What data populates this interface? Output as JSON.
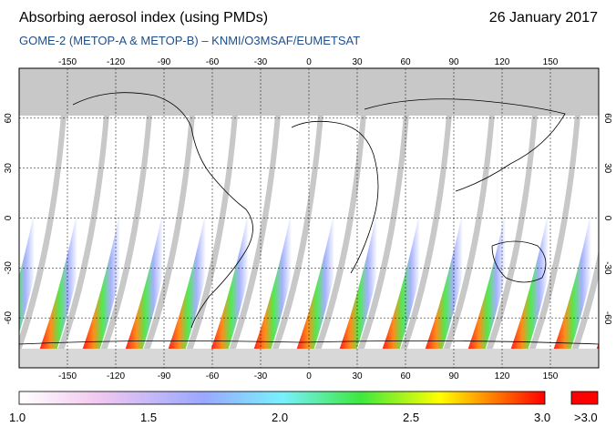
{
  "header": {
    "title": "Absorbing aerosol index (using PMDs)",
    "date": "26 January 2017",
    "subtitle": "GOME-2 (METOP-A & METOP-B)  –  KNMI/O3MSAF/EUMETSAT"
  },
  "map": {
    "lon_ticks_top": [
      "-150",
      "-120",
      "-90",
      "-60",
      "-30",
      "0",
      "30",
      "60",
      "90",
      "120",
      "150"
    ],
    "lon_ticks_bottom": [
      "-150",
      "-120",
      "-90",
      "-60",
      "-30",
      "0",
      "30",
      "60",
      "90",
      "120",
      "150"
    ],
    "lat_ticks_left": [
      "60",
      "30",
      "0",
      "-30",
      "-60"
    ],
    "lat_ticks_right": [
      "60",
      "30",
      "0",
      "-30",
      "-60"
    ],
    "lon_values": [
      -150,
      -120,
      -90,
      -60,
      -30,
      0,
      30,
      60,
      90,
      120,
      150
    ],
    "lat_values": [
      60,
      30,
      0,
      -30,
      -60
    ],
    "lon_range": [
      -180,
      180
    ],
    "lat_range": [
      -90,
      90
    ],
    "no_data_color": "#c8c8c8"
  },
  "colorbar": {
    "labels": [
      "1.0",
      "1.5",
      "2.0",
      "2.5",
      "3.0",
      ">3.0"
    ],
    "range": [
      1.0,
      3.0
    ],
    "overflow_color": "#ff0000",
    "colors": [
      "#ffffff",
      "#f2c8f0",
      "#9aa8ff",
      "#78f0ff",
      "#3ee83e",
      "#ffff00",
      "#ff8000",
      "#ff0000"
    ]
  }
}
